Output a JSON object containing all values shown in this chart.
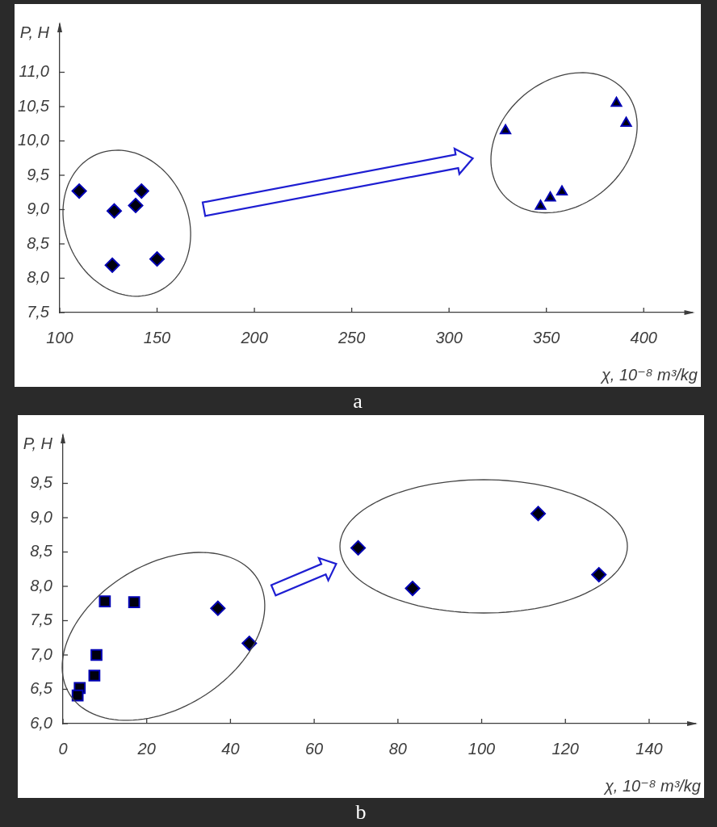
{
  "chart_data": [
    {
      "type": "scatter",
      "title": "a",
      "xlabel": "χ, 10⁻⁸ m³/kg",
      "ylabel": "P, H",
      "series": [
        {
          "color": "#0000b4",
          "marker": "diamond",
          "x": [
            110,
            128,
            139,
            142,
            127,
            150
          ],
          "values": [
            9.27,
            8.98,
            9.06,
            9.27,
            8.19,
            8.28
          ]
        },
        {
          "color": "#0000b4",
          "marker": "triangle",
          "x": [
            329,
            386,
            391,
            347,
            352,
            358
          ],
          "values": [
            10.15,
            10.55,
            10.26,
            9.05,
            9.17,
            9.26
          ]
        }
      ],
      "xlim": [
        100,
        425
      ],
      "xticks": [
        100,
        150,
        200,
        250,
        300,
        350,
        400
      ],
      "ylim": [
        7.5,
        11.7
      ],
      "yticks": [
        {
          "value": 7.5,
          "label": "7,5"
        },
        {
          "value": 8,
          "label": "8,0"
        },
        {
          "value": 8.5,
          "label": "8,5"
        },
        {
          "value": 9,
          "label": "9,0"
        },
        {
          "value": 9.5,
          "label": "9,5"
        },
        {
          "value": 10,
          "label": "10,0"
        },
        {
          "value": 10.5,
          "label": "10,5"
        },
        {
          "value": 11,
          "label": "11,0"
        }
      ]
    },
    {
      "type": "scatter",
      "title": "b",
      "xlabel": "χ, 10⁻⁸ m³/kg",
      "ylabel": "P, H",
      "series": [
        {
          "color": "#0000b4",
          "marker": "square",
          "x": [
            10,
            17,
            8,
            7.5,
            4,
            3.5
          ],
          "values": [
            7.78,
            7.77,
            7.0,
            6.7,
            6.52,
            6.41
          ]
        },
        {
          "color": "#0000b4",
          "marker": "diamond",
          "x": [
            37,
            44.5,
            70.5,
            83.5,
            113.5,
            128
          ],
          "values": [
            7.68,
            7.17,
            8.56,
            7.97,
            9.06,
            8.17
          ]
        }
      ],
      "xlim": [
        0,
        151
      ],
      "xticks": [
        0,
        20,
        40,
        60,
        80,
        100,
        120,
        140
      ],
      "ylim": [
        6,
        10.2
      ],
      "yticks": [
        {
          "value": 6,
          "label": "6,0"
        },
        {
          "value": 6.5,
          "label": "6,5"
        },
        {
          "value": 7,
          "label": "7,0"
        },
        {
          "value": 7.5,
          "label": "7,5"
        },
        {
          "value": 8,
          "label": "8,0"
        },
        {
          "value": 8.5,
          "label": "8,5"
        },
        {
          "value": 9,
          "label": "9,0"
        },
        {
          "value": 9.5,
          "label": "9,5"
        }
      ]
    }
  ]
}
